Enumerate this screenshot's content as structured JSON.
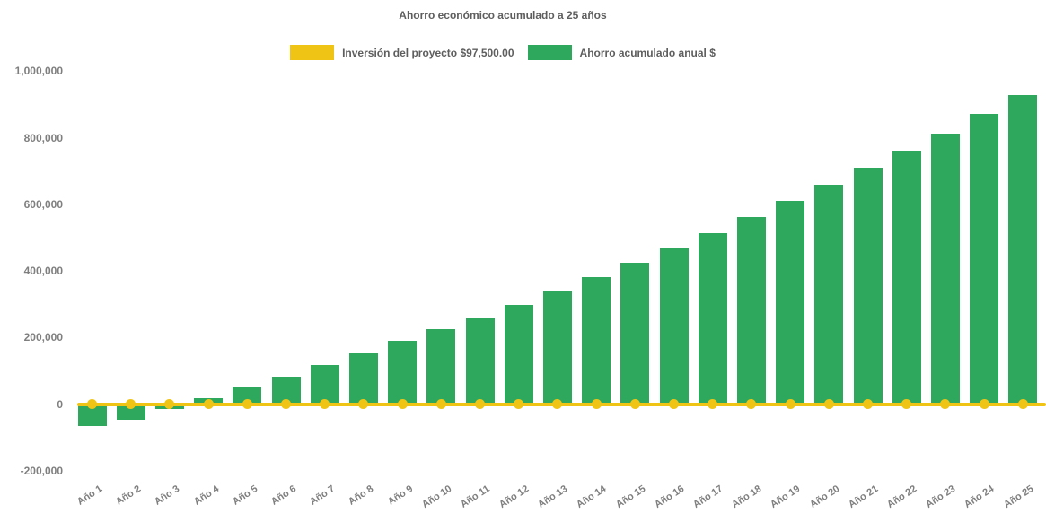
{
  "chart_data": {
    "type": "bar+line",
    "title": "Ahorro económico acumulado a 25 años",
    "categories": [
      "Año 1",
      "Año 2",
      "Año 3",
      "Año 4",
      "Año 5",
      "Año 6",
      "Año 7",
      "Año 8",
      "Año 9",
      "Año 10",
      "Año 11",
      "Año 12",
      "Año 13",
      "Año 14",
      "Año 15",
      "Año 16",
      "Año 17",
      "Año 18",
      "Año 19",
      "Año 20",
      "Año 21",
      "Año 22",
      "Año 23",
      "Año 24",
      "Año 25"
    ],
    "series": [
      {
        "name": "Inversión del proyecto $97,500.00",
        "type": "line",
        "color": "#F0C415",
        "marker": "circle",
        "plotted_value": 0,
        "values": [
          0,
          0,
          0,
          0,
          0,
          0,
          0,
          0,
          0,
          0,
          0,
          0,
          0,
          0,
          0,
          0,
          0,
          0,
          0,
          0,
          0,
          0,
          0,
          0,
          0
        ]
      },
      {
        "name": "Ahorro acumulado anual $",
        "type": "bar",
        "color": "#2EA85C",
        "values": [
          -67000,
          -46000,
          -16000,
          17500,
          52000,
          83000,
          116000,
          151000,
          190000,
          224000,
          260000,
          299000,
          341000,
          380000,
          423000,
          469000,
          514000,
          562000,
          611000,
          658000,
          709000,
          760000,
          813000,
          872000,
          928000
        ]
      }
    ],
    "xlabel": "",
    "ylabel": "",
    "ylim": [
      -200000,
      1000000
    ],
    "yticks": [
      {
        "value": 1000000,
        "label": "1,000,000"
      },
      {
        "value": 800000,
        "label": "800,000"
      },
      {
        "value": 600000,
        "label": "600,000"
      },
      {
        "value": 400000,
        "label": "400,000"
      },
      {
        "value": 200000,
        "label": "200,000"
      },
      {
        "value": 0,
        "label": "0"
      },
      {
        "value": -200000,
        "label": "-200,000"
      }
    ],
    "grid": false,
    "legend_position": "top",
    "background": "#ffffff",
    "text_colors": {
      "title": "#5e5e5e",
      "axis_labels": "#7f7f7f"
    }
  }
}
